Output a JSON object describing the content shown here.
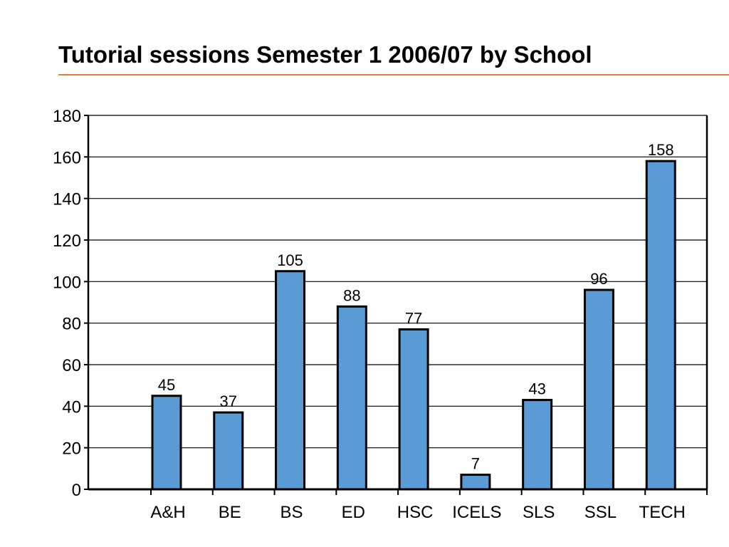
{
  "colors": {
    "bar": "#5b9bd5",
    "bar_outline": "#000000",
    "title_rule": "#e8783c",
    "grid": "#000000"
  },
  "chart_data": {
    "type": "bar",
    "title": "Tutorial sessions Semester 1 2006/07 by School",
    "xlabel": "",
    "ylabel": "",
    "categories": [
      "A&H",
      "BE",
      "BS",
      "ED",
      "HSC",
      "ICELS",
      "SLS",
      "SSL",
      "TECH"
    ],
    "values": [
      45,
      37,
      105,
      88,
      77,
      7,
      43,
      96,
      158
    ],
    "ylim": [
      0,
      180
    ],
    "yticks": [
      0,
      20,
      40,
      60,
      80,
      100,
      120,
      140,
      160,
      180
    ],
    "grid": true,
    "legend": "none",
    "data_labels": true
  }
}
